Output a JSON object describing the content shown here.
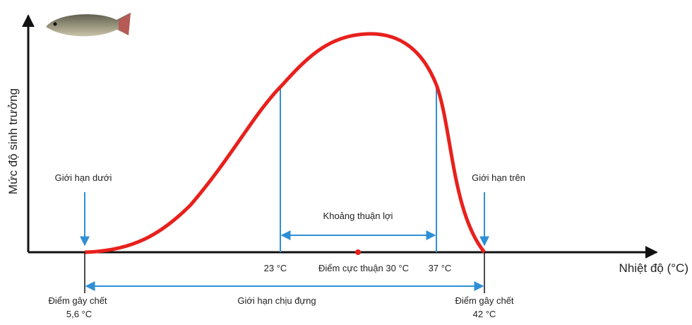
{
  "axes": {
    "y_label": "Mức độ sinh trưởng",
    "x_label": "Nhiệt độ (°C)"
  },
  "labels": {
    "lower_limit": "Giới hạn dưới",
    "upper_limit": "Giới hạn trên",
    "favorable_range": "Khoảng thuận lợi",
    "t23": "23 °C",
    "optimum": "Điểm cực thuận 30 °C",
    "t37": "37 °C",
    "lethal_low": "Điểm gây chết",
    "lethal_low_value": "5,6 °C",
    "tolerance": "Giới hạn chịu đựng",
    "lethal_high": "Điểm gây chết",
    "lethal_high_value": "42 °C"
  }
}
